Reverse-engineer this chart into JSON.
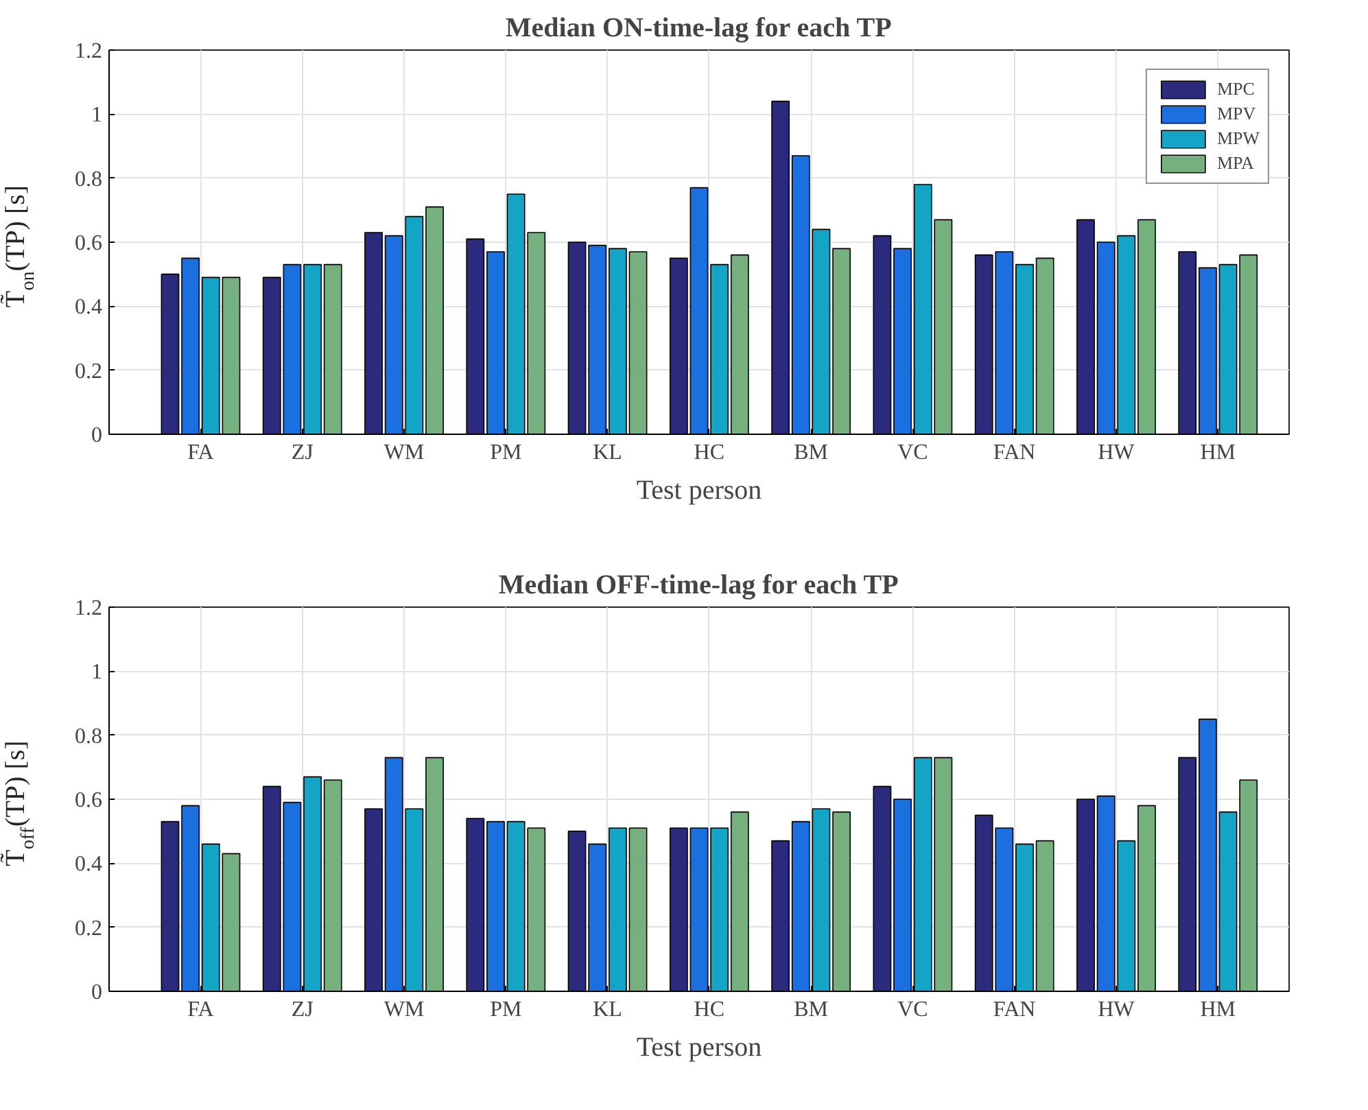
{
  "chart_data": [
    {
      "type": "bar",
      "title": "Median ON-time-lag for each TP",
      "xlabel": "Test person",
      "ylabel": "T̃$_{on}$(TP) [s]",
      "categories": [
        "FA",
        "ZJ",
        "WM",
        "PM",
        "KL",
        "HC",
        "BM",
        "VC",
        "FAN",
        "HW",
        "HM"
      ],
      "series": [
        {
          "name": "MPC",
          "color": "#2b2a7c",
          "values": [
            0.5,
            0.49,
            0.63,
            0.61,
            0.6,
            0.55,
            1.04,
            0.62,
            0.56,
            0.67,
            0.57
          ]
        },
        {
          "name": "MPV",
          "color": "#1c6fde",
          "values": [
            0.55,
            0.53,
            0.62,
            0.57,
            0.59,
            0.77,
            0.87,
            0.58,
            0.57,
            0.6,
            0.52
          ]
        },
        {
          "name": "MPW",
          "color": "#14a5c6",
          "values": [
            0.49,
            0.53,
            0.68,
            0.75,
            0.58,
            0.53,
            0.64,
            0.78,
            0.53,
            0.62,
            0.53
          ]
        },
        {
          "name": "MPA",
          "color": "#77b07f",
          "values": [
            0.49,
            0.53,
            0.71,
            0.63,
            0.57,
            0.56,
            0.58,
            0.67,
            0.55,
            0.67,
            0.56
          ]
        }
      ],
      "ylim": [
        0,
        1.2
      ],
      "yticks": [
        0,
        0.2,
        0.4,
        0.6,
        0.8,
        1,
        1.2
      ],
      "grid": true,
      "legend": "top right"
    },
    {
      "type": "bar",
      "title": "Median OFF-time-lag for each TP",
      "xlabel": "Test person",
      "ylabel": "T̃$_{off}$(TP) [s]",
      "categories": [
        "FA",
        "ZJ",
        "WM",
        "PM",
        "KL",
        "HC",
        "BM",
        "VC",
        "FAN",
        "HW",
        "HM"
      ],
      "series": [
        {
          "color": "#2b2a7c",
          "values": [
            0.53,
            0.64,
            0.57,
            0.54,
            0.5,
            0.51,
            0.47,
            0.64,
            0.55,
            0.6,
            0.73
          ]
        },
        {
          "color": "#1c6fde",
          "values": [
            0.58,
            0.59,
            0.73,
            0.53,
            0.46,
            0.51,
            0.53,
            0.6,
            0.51,
            0.61,
            0.85
          ]
        },
        {
          "color": "#14a5c6",
          "values": [
            0.46,
            0.67,
            0.57,
            0.53,
            0.51,
            0.51,
            0.57,
            0.73,
            0.46,
            0.47,
            0.56
          ]
        },
        {
          "color": "#77b07f",
          "values": [
            0.43,
            0.66,
            0.73,
            0.51,
            0.51,
            0.56,
            0.56,
            0.73,
            0.47,
            0.58,
            0.66
          ]
        }
      ],
      "ylim": [
        0,
        1.2
      ],
      "yticks": [
        0,
        0.2,
        0.4,
        0.6,
        0.8,
        1,
        1.2
      ],
      "grid": true
    }
  ]
}
